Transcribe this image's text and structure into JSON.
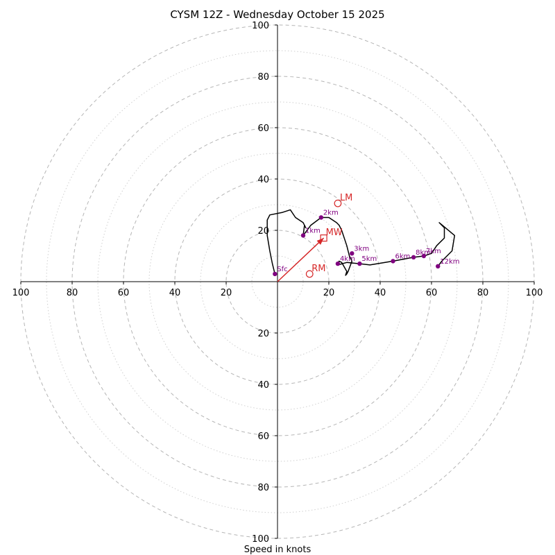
{
  "chart_data": {
    "type": "hodograph",
    "title": "CYSM 12Z - Wednesday October 15 2025",
    "xlabel": "Speed in knots",
    "units": "knots",
    "range": [
      -100,
      100
    ],
    "ring_major": [
      20,
      40,
      60,
      80,
      100
    ],
    "ring_minor": [
      10,
      30,
      50,
      70,
      90
    ],
    "tick_values": [
      100,
      80,
      60,
      40,
      20
    ],
    "grid": true,
    "colors": {
      "trace": "#000000",
      "height_marker": "#800080",
      "motion": "#d62728",
      "ring": "#b5b5b5",
      "axis": "#000000"
    },
    "trace": [
      [
        -1,
        3
      ],
      [
        -2,
        7
      ],
      [
        -3,
        12
      ],
      [
        -4,
        18
      ],
      [
        -4,
        24
      ],
      [
        -3,
        26
      ],
      [
        2,
        27
      ],
      [
        5,
        28
      ],
      [
        7,
        25
      ],
      [
        10,
        23
      ],
      [
        11,
        21
      ],
      [
        10.5,
        22
      ],
      [
        10,
        18
      ],
      [
        13,
        22
      ],
      [
        17,
        25
      ],
      [
        20,
        25
      ],
      [
        23,
        23
      ],
      [
        24,
        22
      ],
      [
        25,
        20
      ],
      [
        27,
        14
      ],
      [
        28,
        10
      ],
      [
        29,
        8
      ],
      [
        27.5,
        4
      ],
      [
        27,
        3
      ],
      [
        26.5,
        2.5
      ],
      [
        27,
        4
      ],
      [
        25,
        7.5
      ],
      [
        24,
        8
      ],
      [
        23.5,
        7
      ],
      [
        23.5,
        6.5
      ],
      [
        27,
        7.5
      ],
      [
        32,
        7
      ],
      [
        36,
        6.5
      ],
      [
        45,
        8
      ],
      [
        53,
        9.5
      ],
      [
        57,
        10
      ],
      [
        60,
        11
      ],
      [
        62,
        14
      ],
      [
        64,
        16
      ],
      [
        65,
        17
      ],
      [
        65,
        21
      ],
      [
        63,
        23
      ],
      [
        69,
        18
      ],
      [
        68,
        12
      ],
      [
        66,
        10
      ],
      [
        64,
        8
      ],
      [
        62.5,
        6
      ]
    ],
    "height_points": [
      {
        "label": "Sfc",
        "u": -1,
        "v": 3
      },
      {
        "label": "1km",
        "u": 10,
        "v": 18
      },
      {
        "label": "2km",
        "u": 17,
        "v": 25
      },
      {
        "label": "3km",
        "u": 29,
        "v": 11
      },
      {
        "label": "4km",
        "u": 23.5,
        "v": 7
      },
      {
        "label": "5km",
        "u": 32,
        "v": 7
      },
      {
        "label": "6km",
        "u": 45,
        "v": 8
      },
      {
        "label": "8km",
        "u": 53,
        "v": 9.5
      },
      {
        "label": "7km",
        "u": 57,
        "v": 10
      },
      {
        "label": "12km",
        "u": 62.5,
        "v": 6
      }
    ],
    "storm_motion": [
      {
        "label": "LM",
        "u": 23.5,
        "v": 30.5,
        "marker": "circle"
      },
      {
        "label": "MW",
        "u": 18,
        "v": 17,
        "marker": "square"
      },
      {
        "label": "RM",
        "u": 12.5,
        "v": 3,
        "marker": "circle"
      }
    ],
    "mean_wind_arrow": {
      "from": [
        0,
        0
      ],
      "to": [
        18,
        17
      ]
    }
  }
}
